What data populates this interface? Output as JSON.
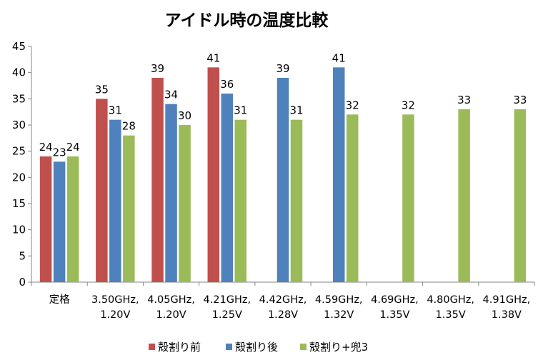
{
  "chart_data": {
    "type": "bar",
    "title": "アイドル時の温度比較",
    "categories": [
      [
        "定格"
      ],
      [
        "3.50GHz,",
        "1.20V"
      ],
      [
        "4.05GHz,",
        "1.20V"
      ],
      [
        "4.21GHz,",
        "1.25V"
      ],
      [
        "4.42GHz,",
        "1.28V"
      ],
      [
        "4.59GHz,",
        "1.32V"
      ],
      [
        "4.69GHz,",
        "1.35V"
      ],
      [
        "4.80GHz,",
        "1.35V"
      ],
      [
        "4.91GHz,",
        "1.38V"
      ]
    ],
    "series": [
      {
        "name": "殻割り前",
        "color": "#c0504d",
        "values": [
          24,
          35,
          39,
          41,
          null,
          null,
          null,
          null,
          null
        ]
      },
      {
        "name": "殻割り後",
        "color": "#4f81bd",
        "values": [
          23,
          31,
          34,
          36,
          39,
          41,
          null,
          null,
          null
        ]
      },
      {
        "name": "殻割り+兜3",
        "color": "#9bbb59",
        "values": [
          24,
          28,
          30,
          31,
          31,
          32,
          32,
          33,
          33
        ]
      }
    ],
    "ylim": [
      0,
      45
    ],
    "yticks": [
      0,
      5,
      10,
      15,
      20,
      25,
      30,
      35,
      40,
      45
    ],
    "grid": false,
    "legend": "bottom"
  }
}
